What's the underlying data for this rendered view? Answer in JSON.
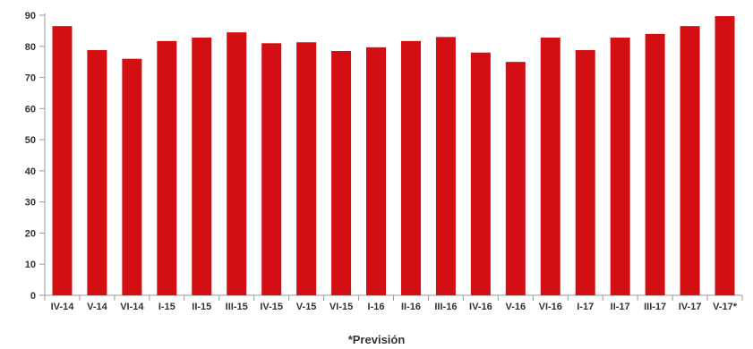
{
  "chart_data": {
    "type": "bar",
    "categories": [
      "IV-14",
      "V-14",
      "VI-14",
      "I-15",
      "II-15",
      "III-15",
      "IV-15",
      "V-15",
      "VI-15",
      "I-16",
      "II-16",
      "III-16",
      "IV-16",
      "V-16",
      "VI-16",
      "I-17",
      "II-17",
      "III-17",
      "IV-17",
      "V-17*"
    ],
    "values": [
      86.5,
      78.8,
      76.0,
      81.7,
      82.8,
      84.5,
      81.0,
      81.3,
      78.5,
      79.7,
      81.7,
      83.0,
      78.0,
      75.0,
      82.8,
      78.8,
      82.8,
      84.0,
      86.5,
      89.7
    ],
    "ylim": [
      0,
      90
    ],
    "yticks": [
      0,
      10,
      20,
      30,
      40,
      50,
      60,
      70,
      80,
      90
    ],
    "title": "",
    "xlabel": "",
    "ylabel": "",
    "grid": false,
    "bar_color": "#d40f14",
    "axis_color": "#999999"
  },
  "footnote": "*Previsión"
}
